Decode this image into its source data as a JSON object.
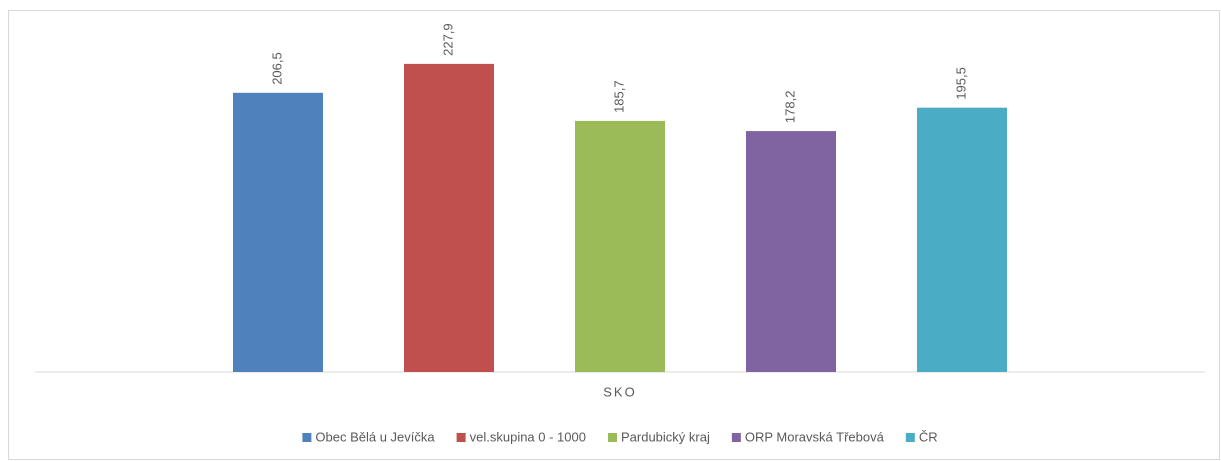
{
  "chart_data": {
    "type": "bar",
    "categories": [
      "SKO"
    ],
    "series": [
      {
        "name": "Obec Bělá u Jevíčka",
        "color": "#4f81bd",
        "values": [
          206.5
        ],
        "value_labels": [
          "206,5"
        ]
      },
      {
        "name": "vel.skupina 0 - 1000",
        "color": "#c0504d",
        "values": [
          227.9
        ],
        "value_labels": [
          "227,9"
        ]
      },
      {
        "name": "Pardubický kraj",
        "color": "#9bbb59",
        "values": [
          185.7
        ],
        "value_labels": [
          "185,7"
        ]
      },
      {
        "name": "ORP Moravská Třebová",
        "color": "#8064a2",
        "values": [
          178.2
        ],
        "value_labels": [
          "178,2"
        ]
      },
      {
        "name": "ČR",
        "color": "#4bacc6",
        "values": [
          195.5
        ],
        "value_labels": [
          "195,5"
        ]
      }
    ],
    "ylim": [
      0,
      250
    ],
    "legend": "bottom"
  }
}
